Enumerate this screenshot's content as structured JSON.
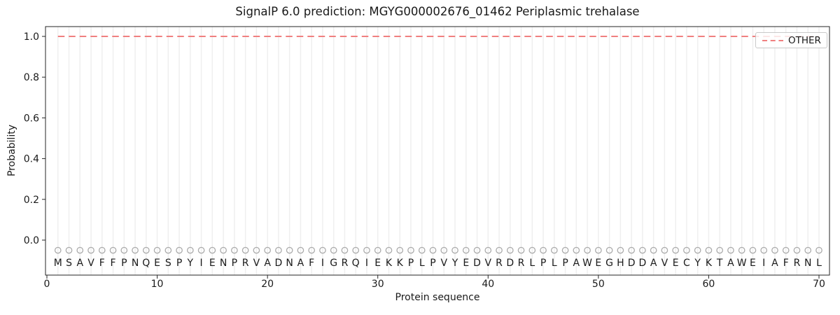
{
  "chart_data": {
    "type": "line",
    "title": "SignalP 6.0 prediction: MGYG000002676_01462 Periplasmic trehalase",
    "xlabel": "Protein sequence",
    "ylabel": "Probability",
    "x_ticks": [
      0,
      10,
      20,
      30,
      40,
      50,
      60,
      70
    ],
    "y_ticks": [
      0.0,
      0.2,
      0.4,
      0.6,
      0.8,
      1.0
    ],
    "ylim": [
      -0.17,
      1.05
    ],
    "xlim": [
      -0.15,
      70.9
    ],
    "grid": "vertical-per-residue",
    "series": [
      {
        "name": "OTHER",
        "style": "dashed",
        "color": "#f08080",
        "y_constant": 1.0,
        "x_start": 1,
        "x_end": 70
      }
    ],
    "sequence": [
      "M",
      "S",
      "A",
      "V",
      "F",
      "F",
      "P",
      "N",
      "Q",
      "E",
      "S",
      "P",
      "Y",
      "I",
      "E",
      "N",
      "P",
      "R",
      "V",
      "A",
      "D",
      "N",
      "A",
      "F",
      "I",
      "G",
      "R",
      "Q",
      "I",
      "E",
      "K",
      "K",
      "P",
      "L",
      "P",
      "V",
      "Y",
      "E",
      "D",
      "V",
      "R",
      "D",
      "R",
      "L",
      "P",
      "L",
      "P",
      "A",
      "W",
      "E",
      "G",
      "H",
      "D",
      "D",
      "A",
      "V",
      "E",
      "C",
      "Y",
      "K",
      "T",
      "A",
      "W",
      "E",
      "I",
      "A",
      "F",
      "R",
      "N",
      "L"
    ],
    "marker": {
      "shape": "open-circle",
      "y_value": -0.05,
      "color": "#ababab"
    },
    "legend": {
      "position": "upper-right",
      "entries": [
        {
          "label": "OTHER",
          "style": "dashed",
          "color": "#f08080"
        }
      ]
    },
    "colors": {
      "dashed_line": "#f08080",
      "gridline": "#efefef",
      "spine": "#262626",
      "text": "#1a1a1a",
      "marker_stroke": "#ababab",
      "legend_border": "#c9c9c9"
    }
  }
}
